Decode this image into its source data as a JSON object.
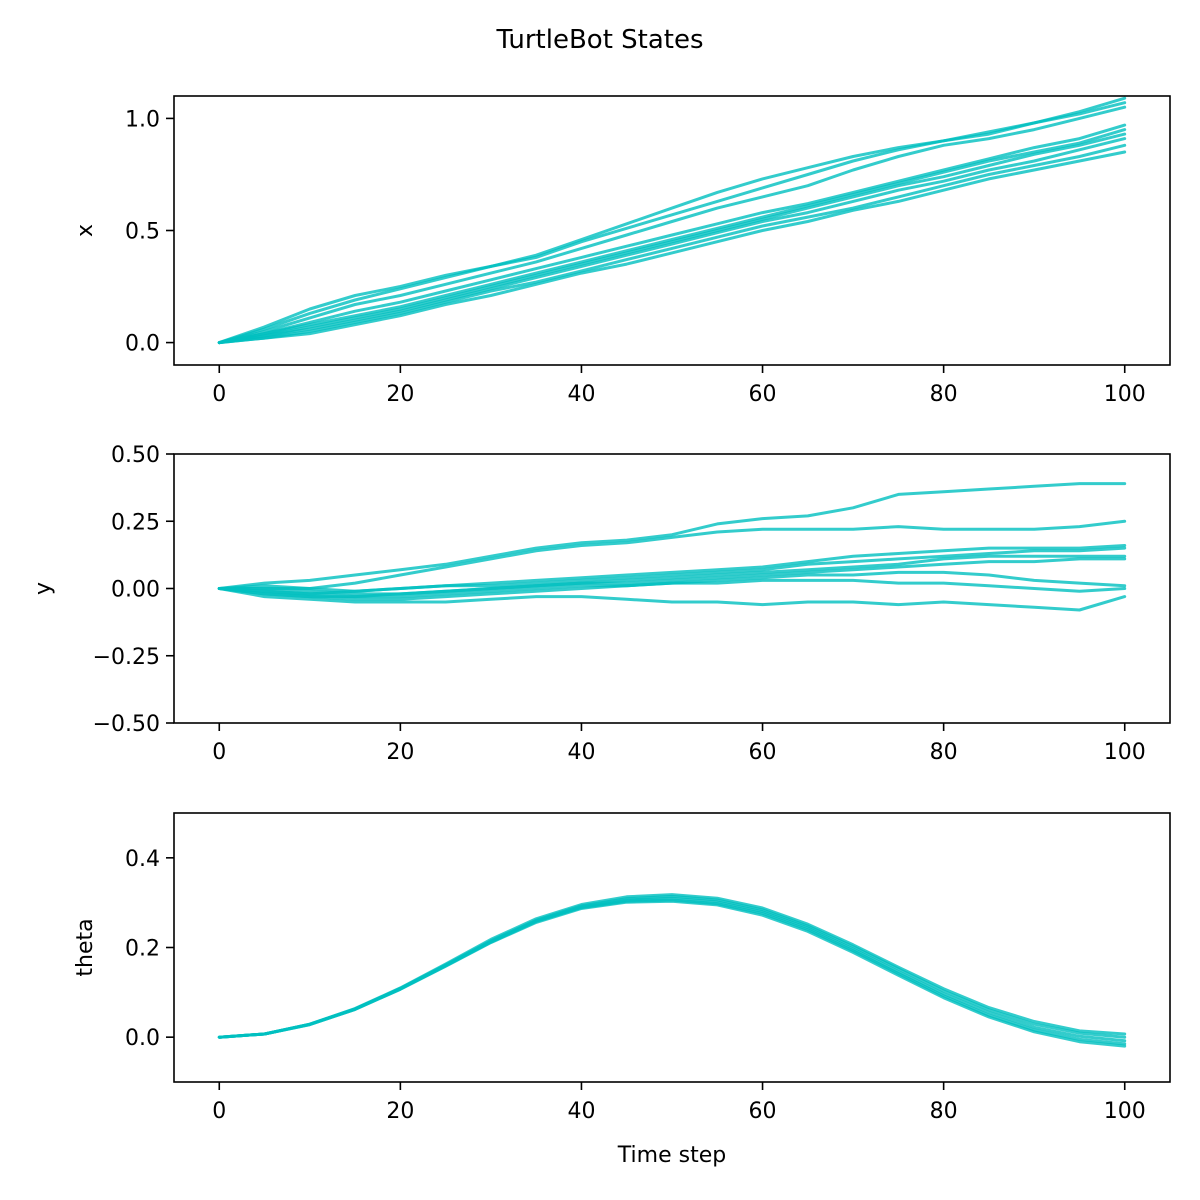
{
  "figure": {
    "title": "TurtleBot States",
    "line_color": "#00bfbf",
    "line_opacity": 0.8
  },
  "chart_data": [
    {
      "type": "line",
      "title": "",
      "xlabel": "",
      "ylabel": "x",
      "xlim": [
        -5,
        105
      ],
      "ylim": [
        -0.1,
        1.1
      ],
      "xticks": [
        0,
        20,
        40,
        60,
        80,
        100
      ],
      "xtick_labels": [
        "0",
        "20",
        "40",
        "60",
        "80",
        "100"
      ],
      "yticks": [
        0.0,
        0.5,
        1.0
      ],
      "ytick_labels": [
        "0.0",
        "0.5",
        "1.0"
      ],
      "grid": false,
      "x": [
        0,
        5,
        10,
        15,
        20,
        25,
        30,
        35,
        40,
        45,
        50,
        55,
        60,
        65,
        70,
        75,
        80,
        85,
        90,
        95,
        100
      ],
      "series": [
        {
          "values": [
            0.0,
            0.07,
            0.15,
            0.21,
            0.25,
            0.3,
            0.34,
            0.39,
            0.46,
            0.53,
            0.6,
            0.67,
            0.73,
            0.78,
            0.83,
            0.87,
            0.9,
            0.94,
            0.98,
            1.03,
            1.09
          ]
        },
        {
          "values": [
            0.0,
            0.06,
            0.13,
            0.19,
            0.24,
            0.29,
            0.34,
            0.38,
            0.45,
            0.51,
            0.57,
            0.63,
            0.69,
            0.75,
            0.81,
            0.86,
            0.9,
            0.93,
            0.98,
            1.02,
            1.07
          ]
        },
        {
          "values": [
            0.0,
            0.05,
            0.11,
            0.17,
            0.21,
            0.26,
            0.31,
            0.36,
            0.42,
            0.48,
            0.54,
            0.6,
            0.65,
            0.7,
            0.77,
            0.83,
            0.88,
            0.91,
            0.95,
            1.0,
            1.05
          ]
        },
        {
          "values": [
            0.0,
            0.04,
            0.09,
            0.14,
            0.18,
            0.23,
            0.28,
            0.33,
            0.38,
            0.43,
            0.48,
            0.53,
            0.58,
            0.62,
            0.67,
            0.72,
            0.77,
            0.82,
            0.87,
            0.91,
            0.97
          ]
        },
        {
          "values": [
            0.0,
            0.04,
            0.08,
            0.12,
            0.16,
            0.21,
            0.26,
            0.31,
            0.36,
            0.41,
            0.46,
            0.51,
            0.56,
            0.61,
            0.66,
            0.71,
            0.76,
            0.81,
            0.85,
            0.89,
            0.95
          ]
        },
        {
          "values": [
            0.0,
            0.03,
            0.07,
            0.11,
            0.15,
            0.2,
            0.25,
            0.3,
            0.35,
            0.4,
            0.45,
            0.5,
            0.55,
            0.6,
            0.65,
            0.7,
            0.74,
            0.79,
            0.84,
            0.88,
            0.93
          ]
        },
        {
          "values": [
            0.0,
            0.03,
            0.06,
            0.1,
            0.14,
            0.19,
            0.24,
            0.29,
            0.34,
            0.39,
            0.44,
            0.49,
            0.54,
            0.58,
            0.63,
            0.68,
            0.72,
            0.77,
            0.81,
            0.86,
            0.91
          ]
        },
        {
          "values": [
            0.0,
            0.02,
            0.05,
            0.09,
            0.13,
            0.18,
            0.23,
            0.27,
            0.32,
            0.37,
            0.42,
            0.47,
            0.52,
            0.56,
            0.6,
            0.65,
            0.7,
            0.75,
            0.79,
            0.83,
            0.88
          ]
        },
        {
          "values": [
            0.0,
            0.02,
            0.04,
            0.08,
            0.12,
            0.17,
            0.21,
            0.26,
            0.31,
            0.35,
            0.4,
            0.45,
            0.5,
            0.54,
            0.59,
            0.63,
            0.68,
            0.73,
            0.77,
            0.81,
            0.85
          ]
        }
      ]
    },
    {
      "type": "line",
      "title": "",
      "xlabel": "",
      "ylabel": "y",
      "xlim": [
        -5,
        105
      ],
      "ylim": [
        -0.5,
        0.5
      ],
      "xticks": [
        0,
        20,
        40,
        60,
        80,
        100
      ],
      "xtick_labels": [
        "0",
        "20",
        "40",
        "60",
        "80",
        "100"
      ],
      "yticks": [
        -0.5,
        -0.25,
        0.0,
        0.25,
        0.5
      ],
      "ytick_labels": [
        "−0.50",
        "−0.25",
        "0.00",
        "0.25",
        "0.50"
      ],
      "grid": false,
      "x": [
        0,
        5,
        10,
        15,
        20,
        25,
        30,
        35,
        40,
        45,
        50,
        55,
        60,
        65,
        70,
        75,
        80,
        85,
        90,
        95,
        100
      ],
      "series": [
        {
          "values": [
            0.0,
            0.02,
            0.03,
            0.05,
            0.07,
            0.09,
            0.12,
            0.15,
            0.17,
            0.18,
            0.2,
            0.24,
            0.26,
            0.27,
            0.3,
            0.35,
            0.36,
            0.37,
            0.38,
            0.39,
            0.39
          ]
        },
        {
          "values": [
            0.0,
            0.0,
            0.0,
            0.02,
            0.05,
            0.08,
            0.11,
            0.14,
            0.16,
            0.17,
            0.19,
            0.21,
            0.22,
            0.22,
            0.22,
            0.23,
            0.22,
            0.22,
            0.22,
            0.23,
            0.25
          ]
        },
        {
          "values": [
            0.0,
            0.01,
            0.0,
            -0.01,
            0.0,
            0.01,
            0.02,
            0.03,
            0.04,
            0.05,
            0.06,
            0.07,
            0.08,
            0.1,
            0.12,
            0.13,
            0.14,
            0.15,
            0.15,
            0.15,
            0.16
          ]
        },
        {
          "values": [
            0.0,
            -0.01,
            -0.02,
            -0.01,
            0.0,
            0.01,
            0.01,
            0.02,
            0.03,
            0.04,
            0.05,
            0.06,
            0.07,
            0.09,
            0.1,
            0.11,
            0.12,
            0.13,
            0.14,
            0.14,
            0.15
          ]
        },
        {
          "values": [
            0.0,
            0.0,
            -0.01,
            -0.02,
            -0.02,
            -0.01,
            0.0,
            0.01,
            0.02,
            0.03,
            0.04,
            0.05,
            0.06,
            0.07,
            0.08,
            0.09,
            0.11,
            0.12,
            0.12,
            0.12,
            0.12
          ]
        },
        {
          "values": [
            0.0,
            -0.02,
            -0.03,
            -0.03,
            -0.02,
            -0.01,
            0.0,
            0.01,
            0.02,
            0.02,
            0.03,
            0.04,
            0.05,
            0.06,
            0.07,
            0.08,
            0.09,
            0.1,
            0.1,
            0.11,
            0.11
          ]
        },
        {
          "values": [
            0.0,
            -0.01,
            -0.02,
            -0.03,
            -0.03,
            -0.02,
            -0.01,
            0.0,
            0.01,
            0.01,
            0.02,
            0.03,
            0.04,
            0.05,
            0.05,
            0.06,
            0.06,
            0.05,
            0.03,
            0.02,
            0.01
          ]
        },
        {
          "values": [
            0.0,
            -0.02,
            -0.03,
            -0.04,
            -0.04,
            -0.03,
            -0.02,
            -0.01,
            0.0,
            0.01,
            0.02,
            0.02,
            0.03,
            0.03,
            0.03,
            0.02,
            0.02,
            0.01,
            0.0,
            -0.01,
            0.0
          ]
        },
        {
          "values": [
            0.0,
            -0.03,
            -0.04,
            -0.05,
            -0.05,
            -0.05,
            -0.04,
            -0.03,
            -0.03,
            -0.04,
            -0.05,
            -0.05,
            -0.06,
            -0.05,
            -0.05,
            -0.06,
            -0.05,
            -0.06,
            -0.07,
            -0.08,
            -0.03
          ]
        }
      ]
    },
    {
      "type": "line",
      "title": "",
      "xlabel": "Time step",
      "ylabel": "theta",
      "xlim": [
        -5,
        105
      ],
      "ylim": [
        -0.1,
        0.5
      ],
      "xticks": [
        0,
        20,
        40,
        60,
        80,
        100
      ],
      "xtick_labels": [
        "0",
        "20",
        "40",
        "60",
        "80",
        "100"
      ],
      "yticks": [
        0.0,
        0.2,
        0.4
      ],
      "ytick_labels": [
        "0.0",
        "0.2",
        "0.4"
      ],
      "grid": false,
      "x": [
        0,
        5,
        10,
        15,
        20,
        25,
        30,
        35,
        40,
        45,
        50,
        55,
        60,
        65,
        70,
        75,
        80,
        85,
        90,
        95,
        100
      ],
      "series": [
        {
          "values": [
            0.0,
            0.007,
            0.029,
            0.064,
            0.11,
            0.163,
            0.218,
            0.264,
            0.296,
            0.313,
            0.318,
            0.31,
            0.288,
            0.252,
            0.206,
            0.156,
            0.108,
            0.066,
            0.035,
            0.014,
            0.007
          ]
        },
        {
          "values": [
            0.0,
            0.007,
            0.029,
            0.063,
            0.109,
            0.161,
            0.215,
            0.261,
            0.293,
            0.309,
            0.314,
            0.306,
            0.284,
            0.248,
            0.202,
            0.152,
            0.103,
            0.061,
            0.029,
            0.009,
            0.0
          ]
        },
        {
          "values": [
            0.0,
            0.007,
            0.029,
            0.063,
            0.108,
            0.16,
            0.213,
            0.259,
            0.29,
            0.306,
            0.31,
            0.302,
            0.28,
            0.244,
            0.197,
            0.146,
            0.097,
            0.055,
            0.022,
            0.002,
            -0.008
          ]
        },
        {
          "values": [
            0.0,
            0.007,
            0.028,
            0.062,
            0.107,
            0.159,
            0.212,
            0.258,
            0.289,
            0.303,
            0.306,
            0.298,
            0.276,
            0.24,
            0.193,
            0.142,
            0.092,
            0.049,
            0.016,
            -0.005,
            -0.015
          ]
        },
        {
          "values": [
            0.0,
            0.007,
            0.028,
            0.062,
            0.107,
            0.158,
            0.211,
            0.256,
            0.287,
            0.301,
            0.303,
            0.295,
            0.272,
            0.236,
            0.189,
            0.138,
            0.088,
            0.045,
            0.012,
            -0.01,
            -0.02
          ]
        }
      ]
    }
  ]
}
